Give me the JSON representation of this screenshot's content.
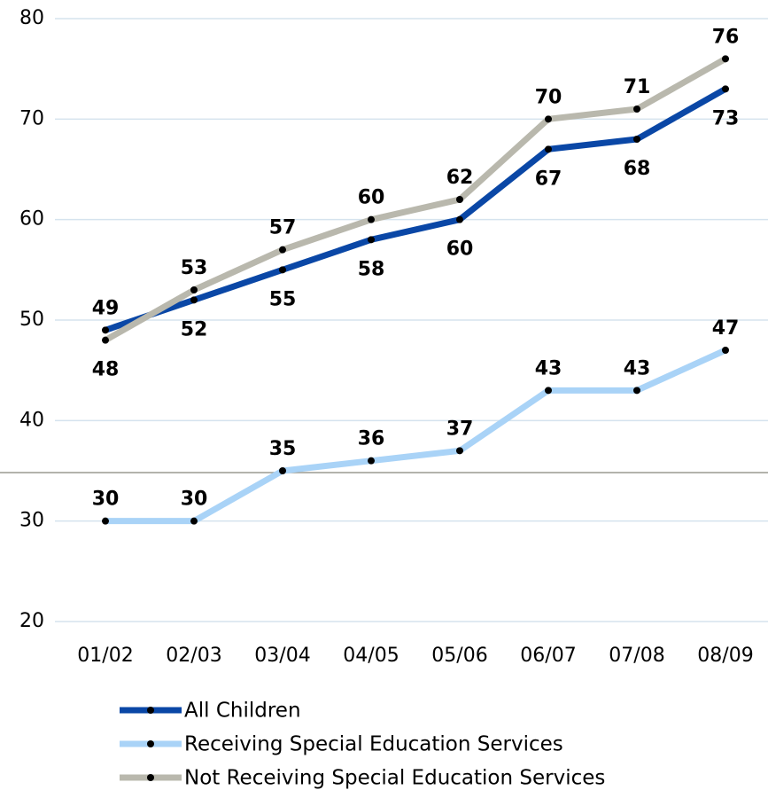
{
  "chart_data": {
    "type": "line",
    "categories": [
      "01/02",
      "02/03",
      "03/04",
      "04/05",
      "05/06",
      "06/07",
      "07/08",
      "08/09"
    ],
    "series": [
      {
        "name": "All Children",
        "color": "#0a47a6",
        "values": [
          49,
          52,
          55,
          58,
          60,
          67,
          68,
          73
        ]
      },
      {
        "name": "Receiving Special Education Services",
        "color": "#a9d3f7",
        "values": [
          30,
          30,
          35,
          36,
          37,
          43,
          43,
          47
        ]
      },
      {
        "name": "Not Receiving Special Education Services",
        "color": "#b9b8ad",
        "values": [
          48,
          53,
          57,
          60,
          62,
          70,
          71,
          76
        ]
      }
    ],
    "ylim": [
      20,
      80
    ],
    "yticks": [
      20,
      30,
      40,
      50,
      60,
      70,
      80
    ],
    "grid": true
  }
}
